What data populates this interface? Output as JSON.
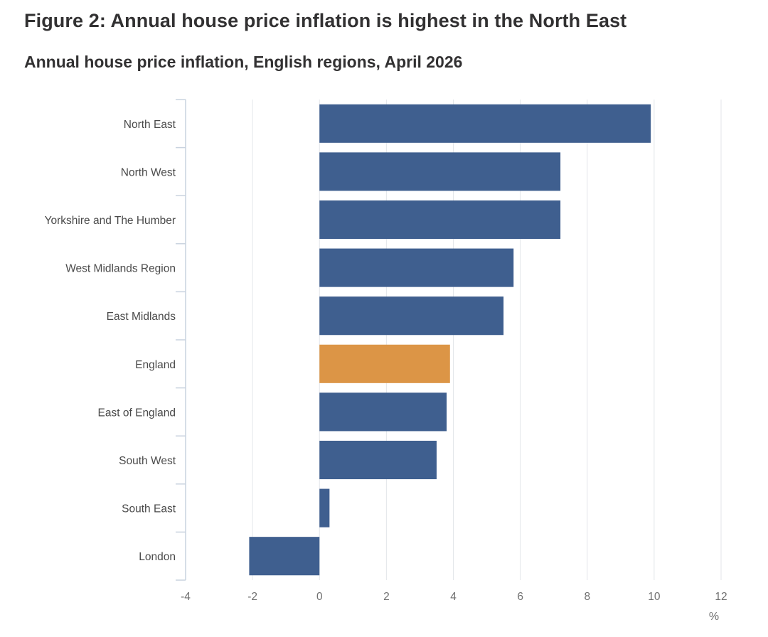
{
  "figure": {
    "title": "Figure 2: Annual house price inflation is highest in the North East",
    "subtitle": "Annual house price inflation, English regions, April 2026"
  },
  "chart_data": {
    "type": "bar",
    "orientation": "horizontal",
    "title": "Annual house price inflation, English regions, April 2026",
    "categories": [
      "North East",
      "North West",
      "Yorkshire and The Humber",
      "West Midlands Region",
      "East Midlands",
      "England",
      "East of England",
      "South West",
      "South East",
      "London"
    ],
    "values": [
      9.9,
      7.2,
      7.2,
      5.8,
      5.5,
      3.9,
      3.8,
      3.5,
      0.3,
      -2.1
    ],
    "highlight": "England",
    "xlabel": "%",
    "xlim": [
      -4,
      12
    ],
    "xticks": [
      -4,
      -2,
      0,
      2,
      4,
      6,
      8,
      10,
      12
    ],
    "grid": true,
    "colors": {
      "bar": "#3f5f8f",
      "highlight": "#dc9546",
      "grid": "#e3e6ea",
      "axis": "#c9d3df"
    }
  }
}
